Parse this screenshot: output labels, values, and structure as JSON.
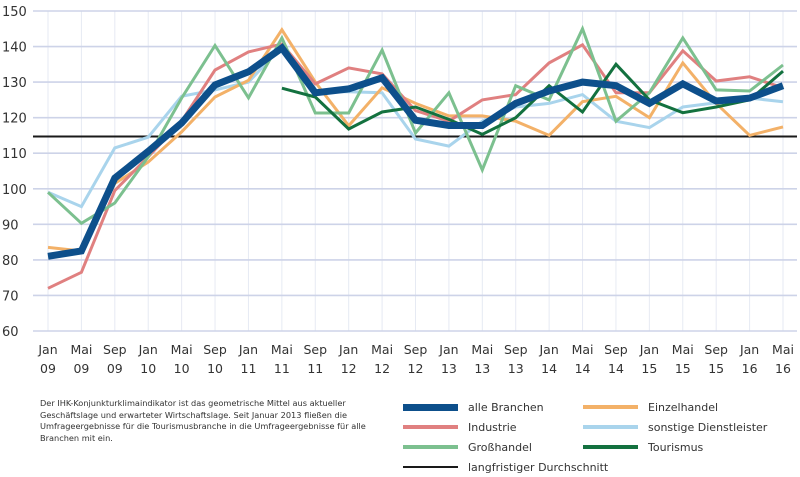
{
  "chart_data": {
    "type": "line",
    "title": "",
    "xlabel": "",
    "ylabel": "",
    "ylim": [
      60,
      150
    ],
    "yticks": [
      150,
      140,
      130,
      120,
      110,
      100,
      90,
      80,
      70,
      60
    ],
    "grid": true,
    "legend_position": "bottom-right",
    "categories": [
      {
        "month": "Jan",
        "year": "09"
      },
      {
        "month": "Mai",
        "year": "09"
      },
      {
        "month": "Sep",
        "year": "09"
      },
      {
        "month": "Jan",
        "year": "10"
      },
      {
        "month": "Mai",
        "year": "10"
      },
      {
        "month": "Sep",
        "year": "10"
      },
      {
        "month": "Jan",
        "year": "11"
      },
      {
        "month": "Mai",
        "year": "11"
      },
      {
        "month": "Sep",
        "year": "11"
      },
      {
        "month": "Jan",
        "year": "12"
      },
      {
        "month": "Mai",
        "year": "12"
      },
      {
        "month": "Sep",
        "year": "12"
      },
      {
        "month": "Jan",
        "year": "13"
      },
      {
        "month": "Mai",
        "year": "13"
      },
      {
        "month": "Sep",
        "year": "13"
      },
      {
        "month": "Jan",
        "year": "14"
      },
      {
        "month": "Mai",
        "year": "14"
      },
      {
        "month": "Sep",
        "year": "14"
      },
      {
        "month": "Jan",
        "year": "15"
      },
      {
        "month": "Mai",
        "year": "15"
      },
      {
        "month": "Sep",
        "year": "15"
      },
      {
        "month": "Jan",
        "year": "16"
      },
      {
        "month": "Mai",
        "year": "16"
      }
    ],
    "reference_line": {
      "name": "langfristiger Durchschnitt",
      "value": 114.7,
      "color": "#1a1a1a"
    },
    "series": [
      {
        "key": "sonstige",
        "name": "sonstige Dienstleister",
        "color": "#a9d4ec",
        "weight": "normal",
        "values": [
          99,
          95,
          111.5,
          114.5,
          126,
          127.8,
          130,
          140,
          127.3,
          127.3,
          127,
          114,
          112,
          119,
          123,
          124,
          126.5,
          119,
          117.2,
          123,
          124.2,
          125.5,
          124.5
        ]
      },
      {
        "key": "einzelhandel",
        "name": "Einzelhandel",
        "color": "#f3b168",
        "weight": "normal",
        "values": [
          83.5,
          82.5,
          101.5,
          107.5,
          116,
          125.8,
          130.5,
          144.7,
          130,
          117.7,
          128.4,
          124,
          120.5,
          120.5,
          119,
          115,
          124.5,
          126,
          120,
          135.4,
          124,
          115,
          117.4
        ]
      },
      {
        "key": "industrie",
        "name": "Industrie",
        "color": "#e08080",
        "weight": "normal",
        "values": [
          72,
          76.5,
          99.5,
          109,
          119,
          133.4,
          138.5,
          140.7,
          129.5,
          134,
          132.3,
          122,
          119,
          125,
          126.5,
          135.4,
          140.5,
          127,
          127,
          138.8,
          130.3,
          131.5,
          128.4
        ]
      },
      {
        "key": "grosshandel",
        "name": "Großhandel",
        "color": "#7cc08f",
        "weight": "normal",
        "values": [
          99,
          90.3,
          96,
          109,
          125.5,
          140.3,
          125.6,
          142.4,
          121.3,
          121.3,
          139,
          115.7,
          127,
          105.3,
          129,
          125,
          145,
          119,
          127,
          142.4,
          127.8,
          127.5,
          134.8
        ]
      },
      {
        "key": "tourismus",
        "name": "Tourismus",
        "color": "#13713f",
        "weight": "normal",
        "values": [
          null,
          null,
          null,
          null,
          null,
          null,
          null,
          128.3,
          125.8,
          116.8,
          121.6,
          123,
          119.5,
          115.3,
          120,
          129,
          121.6,
          135,
          125,
          121.4,
          123,
          125,
          133.1
        ]
      },
      {
        "key": "alle",
        "name": "alle Branchen",
        "color": "#0d4f8b",
        "weight": "bold",
        "values": [
          81,
          82.5,
          103,
          110.5,
          118.5,
          129.2,
          132.9,
          139.6,
          127,
          128.1,
          131.2,
          119.3,
          117.8,
          117.8,
          124,
          127.5,
          130,
          129,
          124,
          129.5,
          124.7,
          125.5,
          129
        ]
      }
    ]
  },
  "legend": {
    "items": [
      {
        "label": "alle Branchen",
        "color": "#0d4f8b",
        "style": "bold"
      },
      {
        "label": "Einzelhandel",
        "color": "#f3b168",
        "style": "normal"
      },
      {
        "label": "Industrie",
        "color": "#e08080",
        "style": "normal"
      },
      {
        "label": "sonstige Dienstleister",
        "color": "#a9d4ec",
        "style": "normal"
      },
      {
        "label": "Großhandel",
        "color": "#7cc08f",
        "style": "normal"
      },
      {
        "label": "Tourismus",
        "color": "#13713f",
        "style": "normal"
      },
      {
        "label": "langfristiger Durchschnitt",
        "color": "#1a1a1a",
        "style": "thin"
      }
    ]
  },
  "footnote": "Der IHK-Konjunkturklimaindikator ist das geometrische Mittel aus aktueller Geschäftslage und erwarteter Wirtschaftslage. Seit Januar 2013 fließen die Umfrageergebnisse für die Tourismusbranche in die Umfrageergebnisse für alle Branchen mit ein."
}
